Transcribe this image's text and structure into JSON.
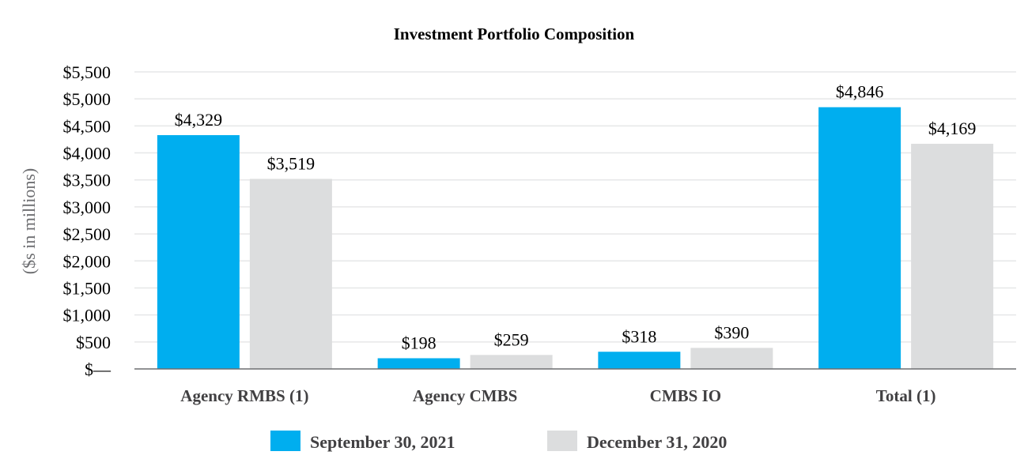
{
  "chart_data": {
    "type": "bar",
    "title": "Investment Portfolio Composition",
    "ylabel": "($s in millions)",
    "xlabel": "",
    "ylim": [
      0,
      5500
    ],
    "yticks": [
      0,
      500,
      1000,
      1500,
      2000,
      2500,
      3000,
      3500,
      4000,
      4500,
      5000,
      5500
    ],
    "ytick_labels": [
      "$—",
      "$500",
      "$1,000",
      "$1,500",
      "$2,000",
      "$2,500",
      "$3,000",
      "$3,500",
      "$4,000",
      "$4,500",
      "$5,000",
      "$5,500"
    ],
    "grid": true,
    "legend_position": "bottom-center",
    "categories": [
      "Agency RMBS (1)",
      "Agency CMBS",
      "CMBS IO",
      "Total (1)"
    ],
    "series": [
      {
        "name": "September 30, 2021",
        "color": "#00aeef",
        "values": [
          4329,
          198,
          318,
          4846
        ],
        "labels": [
          "$4,329",
          "$198",
          "$318",
          "$4,846"
        ]
      },
      {
        "name": "December 31, 2020",
        "color": "#dcddde",
        "values": [
          3519,
          259,
          390,
          4169
        ],
        "labels": [
          "$3,519",
          "$259",
          "$390",
          "$4,169"
        ]
      }
    ]
  }
}
